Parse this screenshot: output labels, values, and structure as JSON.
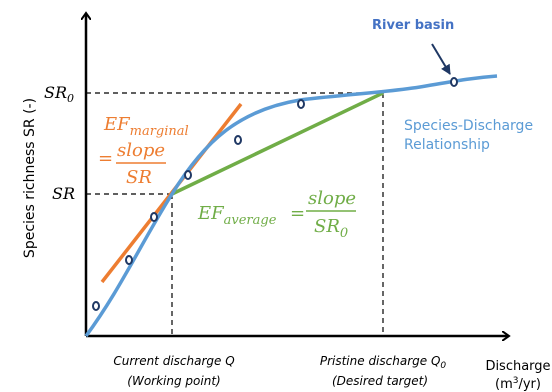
{
  "axes": {
    "y_label": "Species richness SR (-)",
    "x_label_line1": "Discharge",
    "x_label_line2_pre": "(m",
    "x_label_line2_sup": "3",
    "x_label_line2_post": "/yr)",
    "y_tick_sr0_base": "SR",
    "y_tick_sr0_sub": "0",
    "y_tick_sr": "SR",
    "x_tick_current_line1": "Current discharge Q",
    "x_tick_current_line2": "(Working point)",
    "x_tick_pristine_line1_base": "Pristine discharge Q",
    "x_tick_pristine_line1_sub": "0",
    "x_tick_pristine_line2": "(Desired target)"
  },
  "curve": {
    "name_line1": "Species-Discharge",
    "name_line2": "Relationship",
    "river_basin_label": "River basin"
  },
  "ef_marginal": {
    "ef": "EF",
    "sub": "marginal",
    "equals": "=",
    "numerator": "slope",
    "denominator": "SR"
  },
  "ef_average": {
    "ef": "EF",
    "sub": "average",
    "equals": "=",
    "numerator": "slope",
    "denominator_base": "SR",
    "denominator_sub": "0"
  },
  "colors": {
    "curve": "#5b9bd5",
    "marginal": "#ed7d31",
    "average": "#70ad47",
    "points": "#1f3864",
    "river_label": "#4472c4",
    "axis": "#000000"
  }
}
